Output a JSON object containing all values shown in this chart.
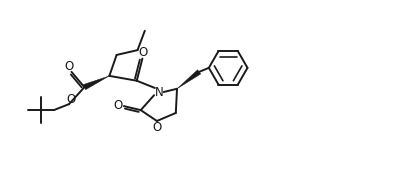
{
  "background": "#ffffff",
  "line_color": "#1a1a1a",
  "lw": 1.4,
  "fig_width": 4.08,
  "fig_height": 1.84,
  "dpi": 100,
  "xlim": [
    0,
    10
  ],
  "ylim": [
    0,
    4.5
  ]
}
